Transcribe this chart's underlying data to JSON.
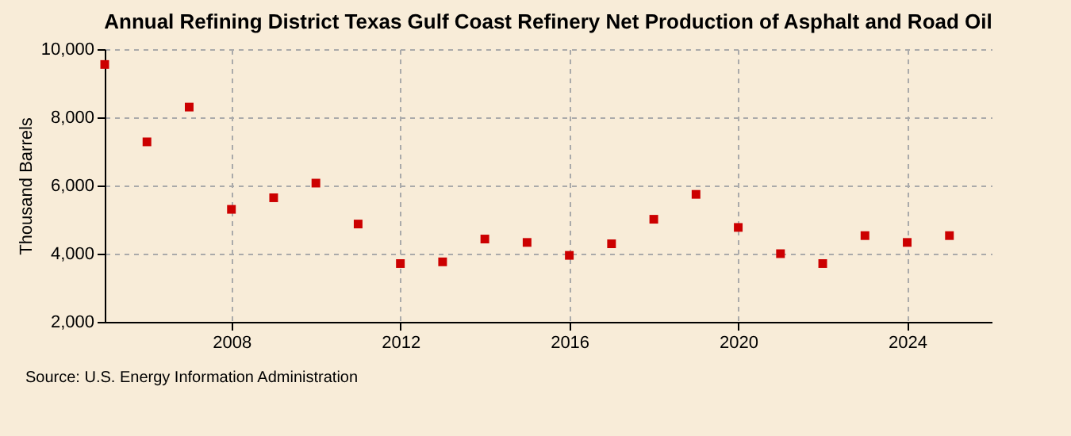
{
  "chart_data": {
    "type": "scatter",
    "title": "Annual Refining District Texas Gulf Coast Refinery Net Production of Asphalt and Road Oil",
    "ylabel": "Thousand Barrels",
    "x": [
      2005,
      2006,
      2007,
      2008,
      2009,
      2010,
      2011,
      2012,
      2013,
      2014,
      2015,
      2016,
      2017,
      2018,
      2019,
      2020,
      2021,
      2022,
      2023,
      2024,
      2025
    ],
    "series": [
      {
        "color": "#cc0000",
        "values": [
          9550,
          7280,
          8300,
          5300,
          5640,
          6070,
          4870,
          3710,
          3760,
          4430,
          4330,
          3950,
          4290,
          5010,
          5740,
          4770,
          4000,
          3710,
          4530,
          4330,
          4530
        ]
      }
    ],
    "xlim": [
      2005,
      2026
    ],
    "xticks": [
      2008,
      2012,
      2016,
      2020,
      2024
    ],
    "ylim": [
      2000,
      10000
    ],
    "yticks": [
      {
        "value": 2000,
        "label": "2,000"
      },
      {
        "value": 4000,
        "label": "4,000"
      },
      {
        "value": 6000,
        "label": "6,000"
      },
      {
        "value": 8000,
        "label": "8,000"
      },
      {
        "value": 10000,
        "label": "10,000"
      }
    ],
    "grid": true,
    "marker": "square",
    "legend": false,
    "annotations": [
      "Source: U.S. Energy Information Administration"
    ]
  }
}
